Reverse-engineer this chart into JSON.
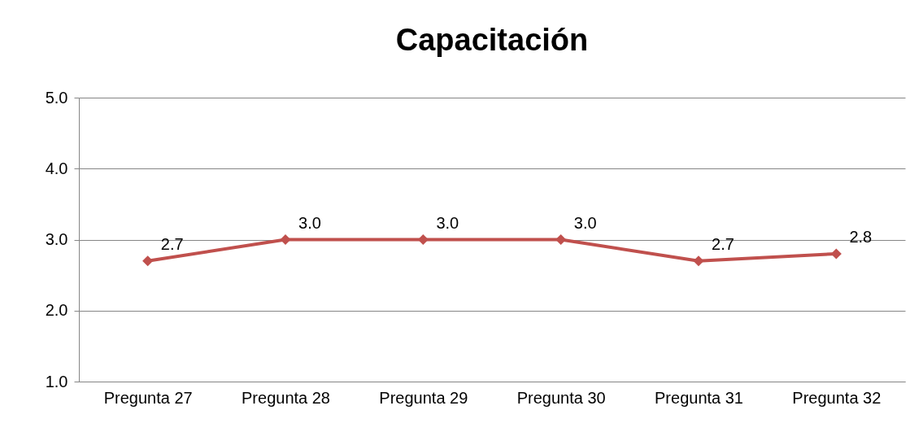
{
  "chart_data": {
    "type": "line",
    "title": "Capacitación",
    "categories": [
      "Pregunta 27",
      "Pregunta 28",
      "Pregunta 29",
      "Pregunta 30",
      "Pregunta 31",
      "Pregunta 32"
    ],
    "series": [
      {
        "color": "#c0504d",
        "values": [
          2.7,
          3.0,
          3.0,
          3.0,
          2.7,
          2.8
        ],
        "value_labels": [
          "2.7",
          "3.0",
          "3.0",
          "3.0",
          "2.7",
          "2.8"
        ]
      }
    ],
    "ylim": [
      1,
      5
    ],
    "yticks": [
      {
        "value": 1,
        "label": "1.0"
      },
      {
        "value": 2,
        "label": "2.0"
      },
      {
        "value": 3,
        "label": "3.0"
      },
      {
        "value": 4,
        "label": "4.0"
      },
      {
        "value": 5,
        "label": "5.0"
      }
    ],
    "grid": "y",
    "marker": "diamond",
    "line_style": "solid"
  }
}
